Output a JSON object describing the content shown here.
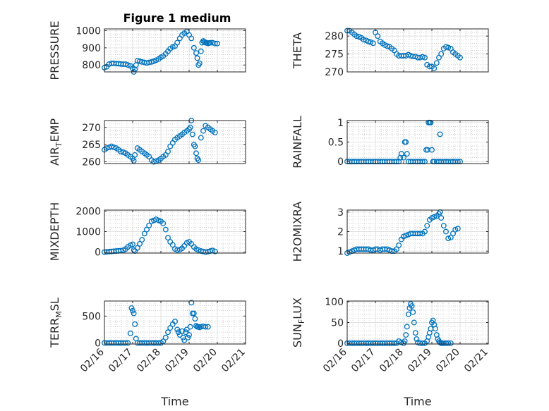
{
  "title": "Figure 1 medium",
  "colors": {
    "marker": "#0072BD",
    "axes": "#262626",
    "grid": "#b0b0b0"
  },
  "chart_data": [
    {
      "type": "scatter",
      "ylabel": "PRESSURE",
      "ylim": [
        760,
        1010
      ],
      "yticks": [
        800,
        900,
        1000
      ],
      "ytick_labels": [
        "800",
        "900",
        "1000"
      ],
      "xlim": [
        0,
        5
      ],
      "xticks": [
        0,
        1,
        2,
        3,
        4,
        5
      ],
      "grid": true,
      "x": [
        0.0,
        0.08,
        0.16,
        0.25,
        0.33,
        0.42,
        0.5,
        0.58,
        0.67,
        0.75,
        0.83,
        0.92,
        1.0,
        1.04,
        1.08,
        1.12,
        1.17,
        1.25,
        1.33,
        1.42,
        1.5,
        1.58,
        1.67,
        1.75,
        1.83,
        1.92,
        2.0,
        2.08,
        2.17,
        2.25,
        2.33,
        2.42,
        2.5,
        2.58,
        2.67,
        2.75,
        2.83,
        2.92,
        3.0,
        3.08,
        3.17,
        3.25,
        3.29,
        3.33,
        3.37,
        3.42,
        3.46,
        3.5,
        3.54,
        3.58,
        3.62,
        3.67,
        3.71,
        3.75,
        3.83,
        3.92,
        4.0
      ],
      "y": [
        785,
        790,
        805,
        810,
        810,
        808,
        808,
        806,
        805,
        805,
        800,
        795,
        780,
        760,
        775,
        800,
        825,
        822,
        818,
        815,
        812,
        815,
        818,
        822,
        828,
        835,
        845,
        852,
        865,
        880,
        895,
        905,
        910,
        930,
        955,
        975,
        985,
        995,
        975,
        955,
        900,
        870,
        840,
        800,
        810,
        880,
        930,
        940,
        935,
        930,
        930,
        925,
        928,
        930,
        930,
        925,
        925
      ]
    },
    {
      "type": "scatter",
      "ylabel": "THETA",
      "ylim": [
        270,
        282
      ],
      "yticks": [
        270,
        275,
        280
      ],
      "ytick_labels": [
        "270",
        "275",
        "280"
      ],
      "xlim": [
        0,
        5
      ],
      "xticks": [
        0,
        1,
        2,
        3,
        4,
        5
      ],
      "grid": true,
      "x": [
        0.0,
        0.08,
        0.17,
        0.25,
        0.33,
        0.42,
        0.5,
        0.58,
        0.67,
        0.75,
        0.83,
        0.92,
        1.0,
        1.08,
        1.17,
        1.25,
        1.33,
        1.42,
        1.5,
        1.58,
        1.67,
        1.75,
        1.83,
        1.92,
        2.0,
        2.08,
        2.17,
        2.25,
        2.33,
        2.42,
        2.5,
        2.58,
        2.67,
        2.75,
        2.83,
        2.92,
        3.0,
        3.08,
        3.17,
        3.25,
        3.33,
        3.42,
        3.5,
        3.58,
        3.67,
        3.75,
        3.83,
        3.92,
        4.0
      ],
      "y": [
        281.5,
        281.5,
        281.0,
        280.5,
        280.0,
        279.8,
        279.5,
        279.0,
        278.8,
        278.5,
        278.3,
        278.0,
        281.0,
        280.0,
        278.5,
        278.0,
        277.5,
        277.2,
        277.0,
        276.5,
        276.0,
        275.0,
        274.5,
        274.5,
        274.5,
        274.5,
        274.8,
        274.5,
        274.3,
        274.3,
        274.0,
        274.0,
        274.2,
        274.0,
        272.0,
        271.5,
        271.5,
        271.0,
        272.5,
        274.0,
        275.0,
        276.5,
        277.0,
        276.8,
        276.5,
        275.5,
        275.0,
        274.5,
        274.0
      ]
    },
    {
      "type": "scatter",
      "ylabel": "AIR_TEMP",
      "ylim": [
        259.5,
        272
      ],
      "yticks": [
        260,
        265,
        270
      ],
      "ytick_labels": [
        "260",
        "265",
        "270"
      ],
      "xlim": [
        0,
        5
      ],
      "xticks": [
        0,
        1,
        2,
        3,
        4,
        5
      ],
      "grid": true,
      "x": [
        0.0,
        0.08,
        0.17,
        0.25,
        0.33,
        0.42,
        0.5,
        0.58,
        0.67,
        0.75,
        0.83,
        0.92,
        1.0,
        1.04,
        1.08,
        1.17,
        1.25,
        1.33,
        1.42,
        1.5,
        1.58,
        1.67,
        1.75,
        1.83,
        1.92,
        2.0,
        2.08,
        2.17,
        2.25,
        2.33,
        2.42,
        2.5,
        2.58,
        2.67,
        2.75,
        2.83,
        2.92,
        3.0,
        3.04,
        3.08,
        3.12,
        3.17,
        3.21,
        3.25,
        3.29,
        3.33,
        3.42,
        3.5,
        3.58,
        3.67,
        3.75,
        3.83,
        3.92
      ],
      "y": [
        263.5,
        264.0,
        264.2,
        264.5,
        264.2,
        264.0,
        263.5,
        263.0,
        262.8,
        262.5,
        262.0,
        261.5,
        261.0,
        260.3,
        262.0,
        264.0,
        263.5,
        263.0,
        262.5,
        262.0,
        261.5,
        260.5,
        260.0,
        260.2,
        260.5,
        261.0,
        261.5,
        262.0,
        263.0,
        264.5,
        265.5,
        266.5,
        267.0,
        267.5,
        268.0,
        268.5,
        269.0,
        269.5,
        270.0,
        272.0,
        268.0,
        265.0,
        264.5,
        262.5,
        261.0,
        260.5,
        267.0,
        269.0,
        270.5,
        270.0,
        269.5,
        269.0,
        268.5
      ]
    },
    {
      "type": "scatter",
      "ylabel": "RAINFALL",
      "ylim": [
        -0.05,
        1.05
      ],
      "yticks": [
        0,
        0.5,
        1
      ],
      "ytick_labels": [
        "0",
        "0.5",
        "1"
      ],
      "xlim": [
        0,
        5
      ],
      "xticks": [
        0,
        1,
        2,
        3,
        4,
        5
      ],
      "grid": true,
      "x": [
        0.0,
        0.08,
        0.17,
        0.25,
        0.33,
        0.42,
        0.5,
        0.58,
        0.67,
        0.75,
        0.83,
        0.92,
        1.0,
        1.08,
        1.17,
        1.25,
        1.33,
        1.42,
        1.5,
        1.58,
        1.67,
        1.75,
        1.83,
        1.88,
        1.92,
        2.0,
        2.04,
        2.08,
        2.12,
        2.17,
        2.25,
        2.33,
        2.42,
        2.5,
        2.58,
        2.67,
        2.75,
        2.8,
        2.85,
        2.88,
        2.92,
        2.96,
        3.0,
        3.04,
        3.08,
        3.17,
        3.25,
        3.29,
        3.33,
        3.42,
        3.5,
        3.58,
        3.67,
        3.75,
        3.83,
        3.92,
        4.0
      ],
      "y": [
        0,
        0,
        0,
        0,
        0,
        0,
        0,
        0,
        0,
        0,
        0,
        0,
        0,
        0,
        0,
        0,
        0,
        0,
        0,
        0,
        0,
        0,
        0,
        0.1,
        0.2,
        0.1,
        0.5,
        0.5,
        0.2,
        0,
        0,
        0,
        0,
        0,
        0,
        0,
        0,
        0.3,
        0.3,
        1.0,
        1.0,
        1.0,
        0.3,
        0,
        0,
        0,
        0,
        0.7,
        0,
        0,
        0,
        0,
        0,
        0,
        0,
        0,
        0
      ]
    },
    {
      "type": "scatter",
      "ylabel": "MIXDEPTH",
      "ylim": [
        -50,
        2050
      ],
      "yticks": [
        0,
        1000,
        2000
      ],
      "ytick_labels": [
        "0",
        "1000",
        "2000"
      ],
      "xlim": [
        0,
        5
      ],
      "xticks": [
        0,
        1,
        2,
        3,
        4,
        5
      ],
      "grid": true,
      "x": [
        0.0,
        0.08,
        0.17,
        0.25,
        0.33,
        0.42,
        0.5,
        0.58,
        0.67,
        0.75,
        0.83,
        0.92,
        1.0,
        1.04,
        1.08,
        1.17,
        1.25,
        1.33,
        1.42,
        1.5,
        1.58,
        1.67,
        1.75,
        1.83,
        1.92,
        2.0,
        2.08,
        2.17,
        2.25,
        2.33,
        2.42,
        2.5,
        2.58,
        2.67,
        2.75,
        2.83,
        2.92,
        3.0,
        3.08,
        3.17,
        3.25,
        3.33,
        3.42,
        3.5,
        3.58,
        3.67,
        3.75,
        3.83,
        3.92
      ],
      "y": [
        0,
        10,
        20,
        30,
        40,
        50,
        60,
        70,
        90,
        150,
        250,
        330,
        380,
        100,
        50,
        200,
        400,
        600,
        900,
        1100,
        1300,
        1500,
        1550,
        1600,
        1550,
        1500,
        1400,
        1100,
        700,
        500,
        350,
        150,
        100,
        120,
        180,
        300,
        450,
        500,
        400,
        250,
        150,
        100,
        50,
        30,
        0,
        20,
        50,
        80,
        30
      ]
    },
    {
      "type": "scatter",
      "ylabel": "H2OMIXRA",
      "ylim": [
        0.9,
        3.1
      ],
      "yticks": [
        1,
        2,
        3
      ],
      "ytick_labels": [
        "1",
        "2",
        "3"
      ],
      "xlim": [
        0,
        5
      ],
      "xticks": [
        0,
        1,
        2,
        3,
        4,
        5
      ],
      "grid": true,
      "x": [
        0.0,
        0.08,
        0.17,
        0.25,
        0.33,
        0.42,
        0.5,
        0.58,
        0.67,
        0.75,
        0.83,
        0.92,
        1.0,
        1.08,
        1.17,
        1.25,
        1.33,
        1.42,
        1.5,
        1.58,
        1.67,
        1.75,
        1.83,
        1.92,
        2.0,
        2.08,
        2.17,
        2.25,
        2.33,
        2.42,
        2.5,
        2.58,
        2.67,
        2.75,
        2.83,
        2.92,
        3.0,
        3.08,
        3.17,
        3.25,
        3.29,
        3.33,
        3.42,
        3.5,
        3.58,
        3.67,
        3.75,
        3.83,
        3.92
      ],
      "y": [
        0.9,
        0.95,
        1.0,
        1.05,
        1.1,
        1.1,
        1.1,
        1.1,
        1.1,
        1.1,
        1.05,
        1.05,
        1.1,
        1.1,
        1.05,
        1.1,
        1.1,
        1.1,
        1.05,
        1.0,
        1.0,
        1.1,
        1.3,
        1.6,
        1.75,
        1.8,
        1.85,
        1.9,
        1.9,
        1.9,
        1.9,
        1.9,
        1.9,
        2.0,
        2.3,
        2.6,
        2.7,
        2.75,
        2.8,
        2.9,
        3.0,
        2.7,
        2.3,
        2.0,
        1.65,
        1.7,
        1.9,
        2.1,
        2.15
      ]
    },
    {
      "type": "scatter",
      "ylabel": "TERR_MSL",
      "ylim": [
        -20,
        780
      ],
      "yticks": [
        0,
        500
      ],
      "ytick_labels": [
        "0",
        "500"
      ],
      "xlim": [
        0,
        5
      ],
      "xticks": [
        0,
        1,
        2,
        3,
        4,
        5
      ],
      "xtick_labels": [
        "02/16",
        "02/17",
        "02/18",
        "02/19",
        "02/20",
        "02/21"
      ],
      "xlabel": "Time",
      "grid": true,
      "x": [
        0.0,
        0.08,
        0.17,
        0.25,
        0.33,
        0.42,
        0.5,
        0.58,
        0.67,
        0.75,
        0.83,
        0.92,
        0.96,
        1.0,
        1.04,
        1.08,
        1.12,
        1.17,
        1.25,
        1.33,
        1.42,
        1.5,
        1.58,
        1.67,
        1.75,
        1.83,
        1.92,
        2.0,
        2.08,
        2.17,
        2.25,
        2.33,
        2.42,
        2.5,
        2.58,
        2.62,
        2.67,
        2.75,
        2.79,
        2.83,
        2.88,
        2.92,
        2.96,
        3.0,
        3.04,
        3.08,
        3.12,
        3.17,
        3.21,
        3.25,
        3.29,
        3.33,
        3.37,
        3.42,
        3.5,
        3.58,
        3.67
      ],
      "y": [
        0,
        0,
        0,
        0,
        0,
        0,
        0,
        0,
        0,
        0,
        0,
        180,
        650,
        600,
        550,
        350,
        80,
        0,
        0,
        0,
        0,
        0,
        0,
        0,
        0,
        0,
        0,
        0,
        30,
        100,
        200,
        280,
        350,
        400,
        250,
        200,
        150,
        220,
        100,
        50,
        200,
        250,
        100,
        150,
        300,
        750,
        550,
        550,
        450,
        320,
        300,
        300,
        290,
        300,
        310,
        300,
        300
      ]
    },
    {
      "type": "scatter",
      "ylabel": "SUN_FLUX",
      "ylim": [
        -2,
        102
      ],
      "yticks": [
        0,
        50,
        100
      ],
      "ytick_labels": [
        "0",
        "50",
        "100"
      ],
      "xlim": [
        0,
        5
      ],
      "xticks": [
        0,
        1,
        2,
        3,
        4,
        5
      ],
      "xtick_labels": [
        "02/16",
        "02/17",
        "02/18",
        "02/19",
        "02/20",
        "02/21"
      ],
      "xlabel": "Time",
      "grid": true,
      "x": [
        0.0,
        0.08,
        0.17,
        0.25,
        0.33,
        0.42,
        0.5,
        0.58,
        0.67,
        0.75,
        0.83,
        0.92,
        1.0,
        1.08,
        1.17,
        1.25,
        1.33,
        1.42,
        1.5,
        1.58,
        1.67,
        1.75,
        1.83,
        1.92,
        2.0,
        2.04,
        2.08,
        2.12,
        2.17,
        2.21,
        2.25,
        2.29,
        2.33,
        2.37,
        2.42,
        2.46,
        2.5,
        2.58,
        2.67,
        2.75,
        2.83,
        2.88,
        2.92,
        2.96,
        3.0,
        3.04,
        3.08,
        3.12,
        3.17,
        3.21,
        3.25,
        3.29,
        3.33,
        3.37,
        3.42,
        3.5,
        3.58,
        3.67
      ],
      "y": [
        0,
        0,
        0,
        0,
        0,
        0,
        0,
        0,
        0,
        0,
        0,
        0,
        0,
        0,
        0,
        0,
        0,
        0,
        0,
        0,
        0,
        0,
        5,
        2,
        0,
        5,
        20,
        40,
        70,
        85,
        95,
        90,
        75,
        50,
        25,
        10,
        2,
        0,
        0,
        0,
        5,
        15,
        25,
        35,
        50,
        55,
        45,
        35,
        20,
        10,
        5,
        2,
        0,
        0,
        0,
        0,
        0,
        0
      ]
    }
  ]
}
